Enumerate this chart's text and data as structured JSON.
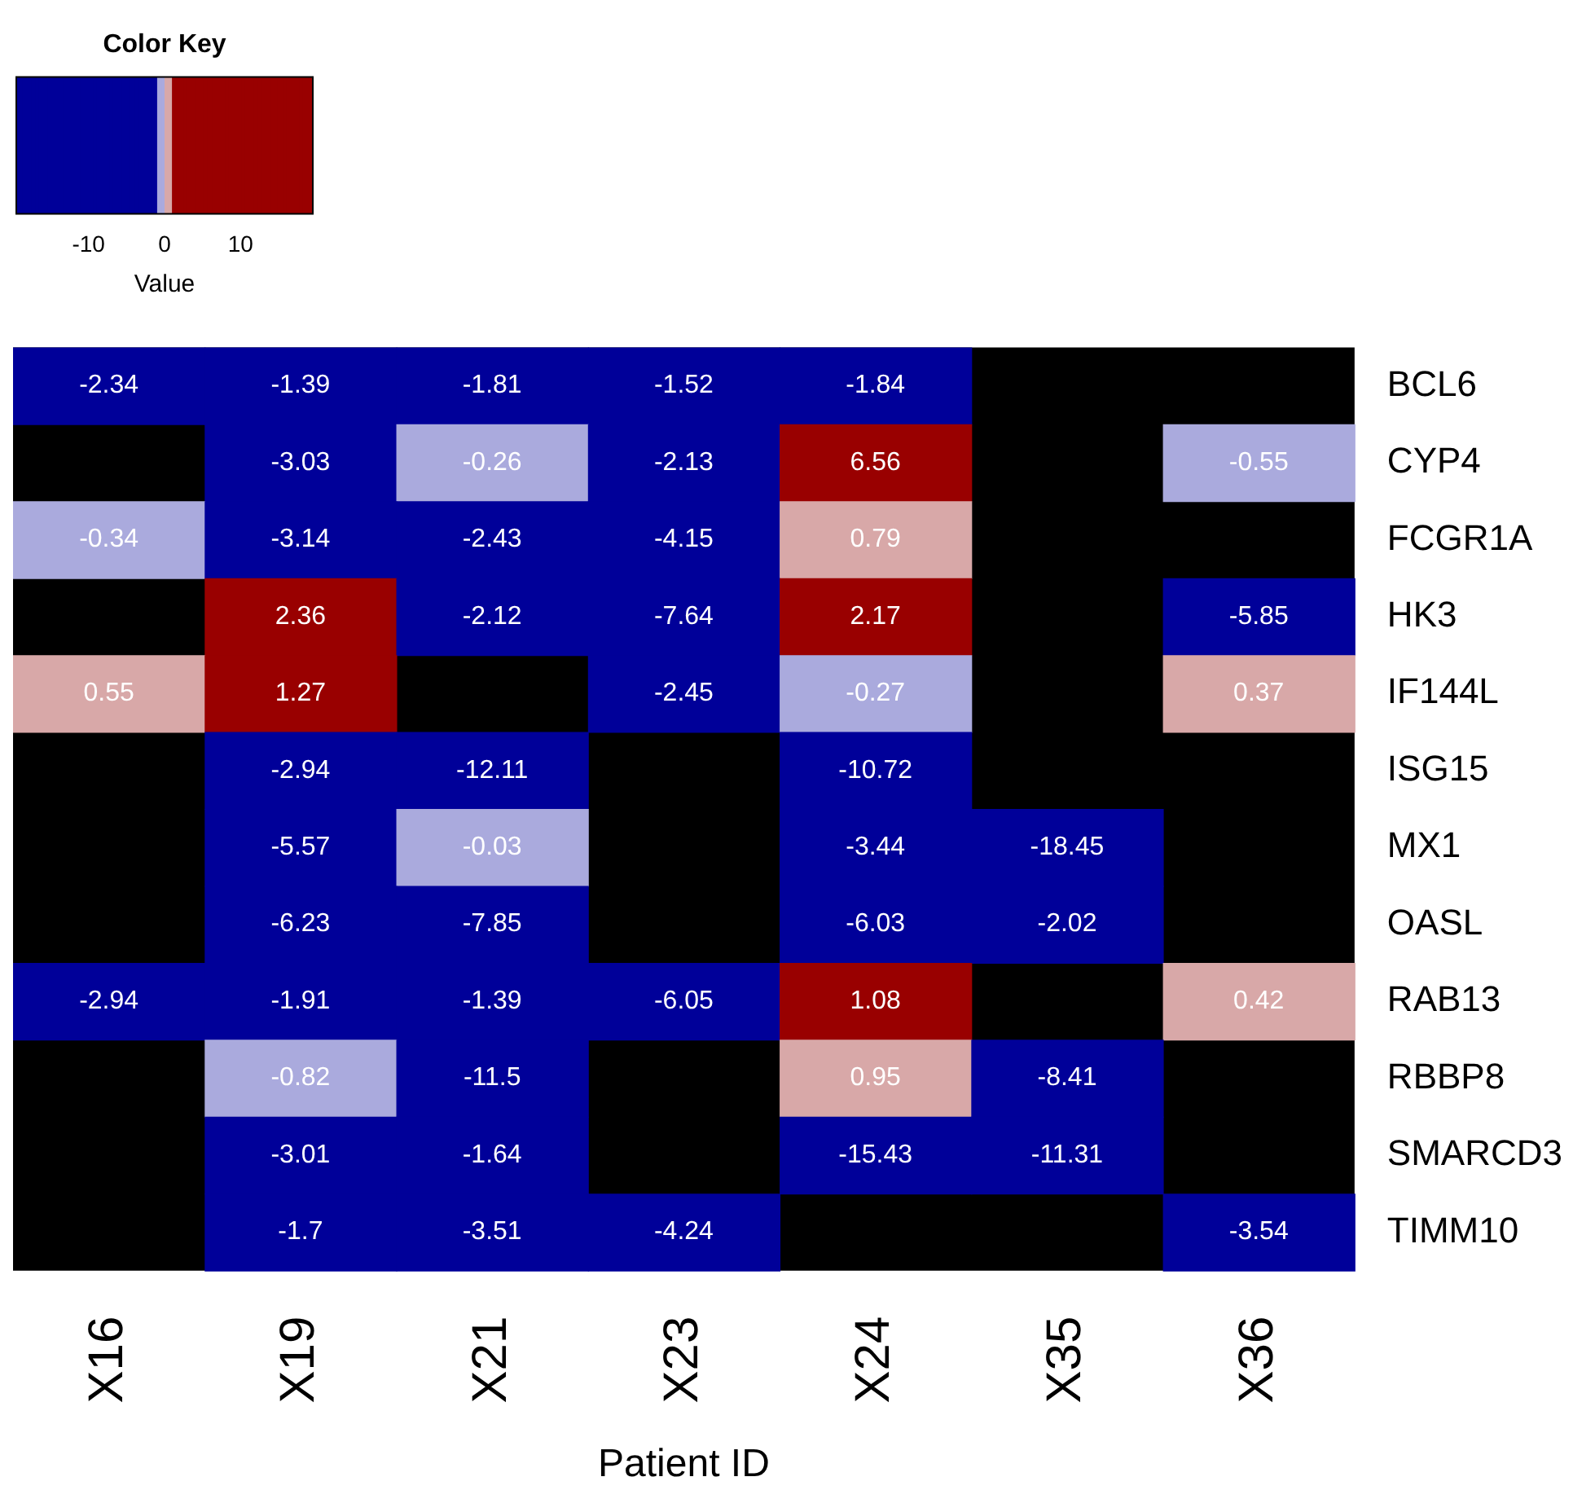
{
  "chart_data": {
    "type": "heatmap",
    "legend_title": "Color Key",
    "clabel": "Value",
    "xlabel": "Patient ID",
    "categories": [
      "X16",
      "X19",
      "X21",
      "X23",
      "X24",
      "X35",
      "X36"
    ],
    "y_categories": [
      "BCL6",
      "CYP4",
      "FCGR1A",
      "HK3",
      "IF144L",
      "ISG15",
      "MX1",
      "OASL",
      "RAB13",
      "RBBP8",
      "SMARCD3",
      "TIMM10"
    ],
    "cells": [
      [
        -2.34,
        -1.39,
        -1.81,
        -1.52,
        -1.84,
        null,
        null
      ],
      [
        null,
        -3.03,
        -0.26,
        -2.13,
        6.56,
        null,
        -0.55
      ],
      [
        -0.34,
        -3.14,
        -2.43,
        -4.15,
        0.79,
        null,
        null
      ],
      [
        null,
        2.36,
        -2.12,
        -7.64,
        2.17,
        null,
        -5.85
      ],
      [
        0.55,
        1.27,
        null,
        -2.45,
        -0.27,
        null,
        0.37
      ],
      [
        null,
        -2.94,
        -12.11,
        null,
        -10.72,
        null,
        null
      ],
      [
        null,
        -5.57,
        -0.03,
        null,
        -3.44,
        -18.45,
        null
      ],
      [
        null,
        -6.23,
        -7.85,
        null,
        -6.03,
        -2.02,
        null
      ],
      [
        -2.94,
        -1.91,
        -1.39,
        -6.05,
        1.08,
        null,
        0.42
      ],
      [
        null,
        -0.82,
        -11.5,
        null,
        0.95,
        -8.41,
        null
      ],
      [
        null,
        -3.01,
        -1.64,
        null,
        -15.43,
        -11.31,
        null
      ],
      [
        null,
        -1.7,
        -3.51,
        -4.24,
        null,
        null,
        -3.54
      ]
    ],
    "colors": [
      "#000099",
      "#aaaadd",
      "#d8a8a8",
      "#990000"
    ],
    "clim": [
      -19.5,
      19.5
    ],
    "cticks": [
      -10,
      0,
      10
    ],
    "data_labels": true
  }
}
